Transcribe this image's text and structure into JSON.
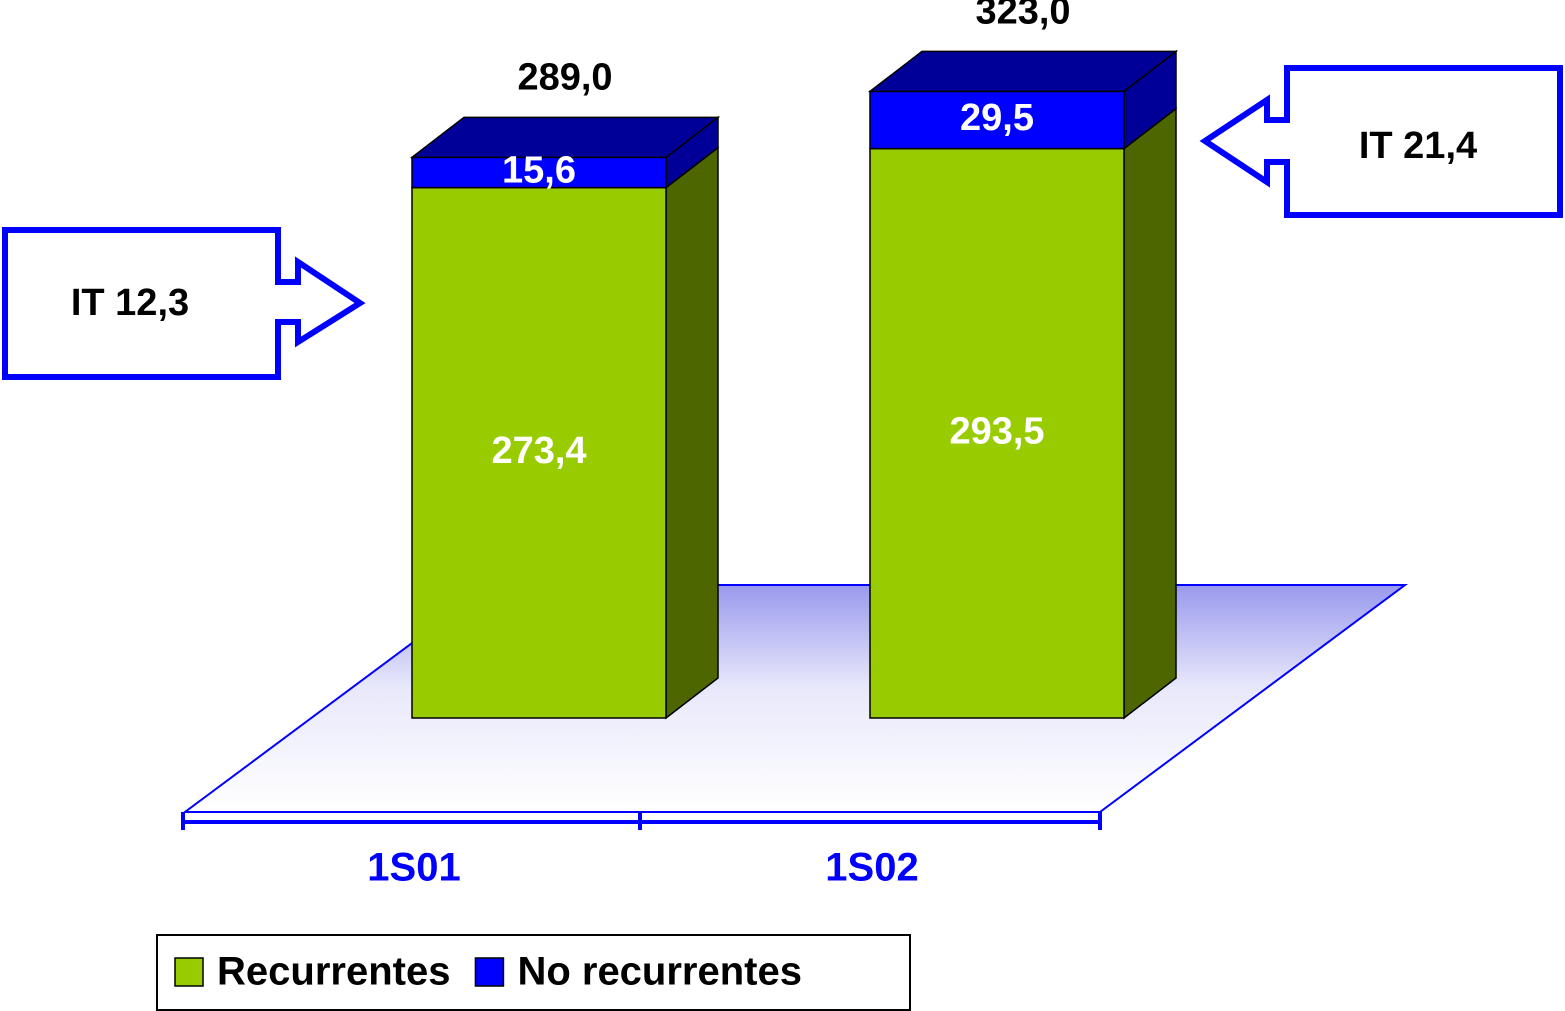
{
  "chart_data": {
    "type": "bar3d_stacked",
    "categories": [
      "1S01",
      "1S02"
    ],
    "series": [
      {
        "name": "Recurrentes",
        "color": "#99cc00",
        "side_color": "#4d6600",
        "values": [
          273.4,
          293.5
        ],
        "value_labels": [
          "273,4",
          "293,5"
        ]
      },
      {
        "name": "No recurrentes",
        "color": "#0000ff",
        "side_color": "#000099",
        "values": [
          15.6,
          29.5
        ],
        "value_labels": [
          "15,6",
          "29,5"
        ]
      }
    ],
    "totals": [
      289.0,
      323.0
    ],
    "total_labels": [
      "289,0",
      "323,0"
    ],
    "annotations": [
      "IT 12,3",
      "IT 21,4"
    ],
    "legend": "bottom-left"
  }
}
